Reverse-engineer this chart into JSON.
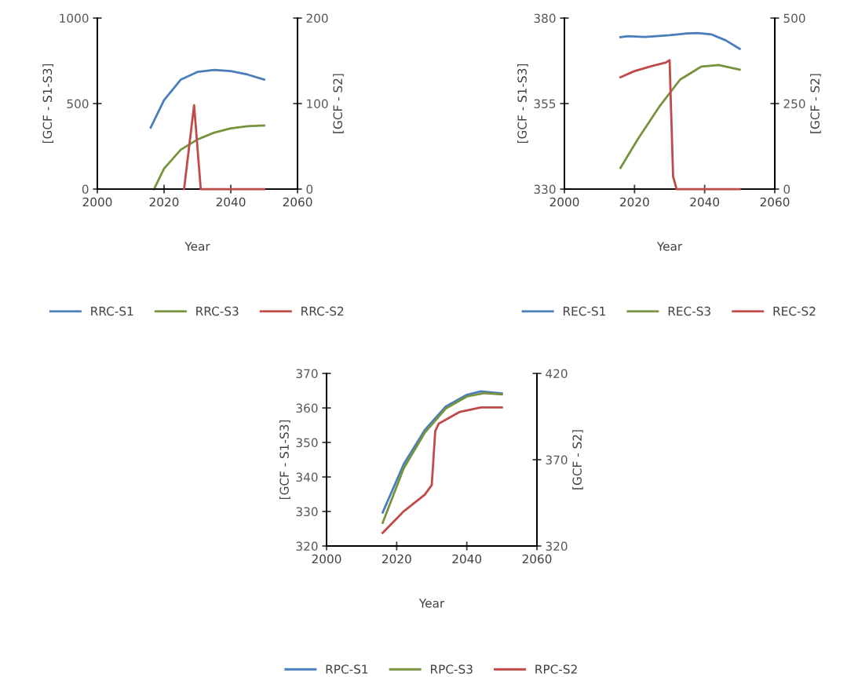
{
  "chart_data": [
    {
      "type": "line",
      "xlabel": "Year",
      "ylabel": "[GCF - S1-S3]",
      "y2label": "[GCF - S2]",
      "xlim": [
        2000,
        2060
      ],
      "xticks": [
        2000,
        2020,
        2040,
        2060
      ],
      "ylim": [
        0,
        1000
      ],
      "yticks": [
        0,
        500,
        1000
      ],
      "y2lim": [
        0,
        200
      ],
      "y2ticks": [
        0,
        100,
        200
      ],
      "legend": "bottom",
      "grid": false,
      "series": [
        {
          "name": "RRC-S1",
          "color": "#4a7ebb",
          "x": [
            2016,
            2020,
            2025,
            2030,
            2035,
            2040,
            2045,
            2050
          ],
          "values": [
            360,
            520,
            640,
            685,
            697,
            690,
            670,
            640
          ]
        },
        {
          "name": "RRC-S3",
          "color": "#77933c",
          "x": [
            2017,
            2020,
            2025,
            2030,
            2035,
            2040,
            2045,
            2050
          ],
          "values": [
            0,
            120,
            230,
            290,
            330,
            355,
            368,
            372
          ]
        },
        {
          "name": "RRC-S2",
          "color": "#be4b48",
          "axis": "y2",
          "x": [
            2026,
            2029,
            2031,
            2050
          ],
          "values": [
            0,
            98,
            0,
            0
          ]
        }
      ]
    },
    {
      "type": "line",
      "xlabel": "Year",
      "ylabel": "[GCF - S1-S3]",
      "y2label": "[GCF - S2]",
      "xlim": [
        2000,
        2060
      ],
      "xticks": [
        2000,
        2020,
        2040,
        2060
      ],
      "ylim": [
        330,
        380
      ],
      "yticks": [
        330,
        355,
        380
      ],
      "y2lim": [
        0,
        500
      ],
      "y2ticks": [
        0,
        250,
        500
      ],
      "legend": "bottom",
      "grid": false,
      "series": [
        {
          "name": "REC-S1",
          "color": "#4a7ebb",
          "x": [
            2016,
            2018,
            2023,
            2030,
            2035,
            2038,
            2042,
            2046,
            2050
          ],
          "values": [
            374.4,
            374.7,
            374.5,
            375.0,
            375.5,
            375.6,
            375.2,
            373.5,
            371.0
          ]
        },
        {
          "name": "REC-S3",
          "color": "#77933c",
          "x": [
            2016,
            2021,
            2027,
            2033,
            2039,
            2044,
            2050
          ],
          "values": [
            336.2,
            344.7,
            354.0,
            362.0,
            365.8,
            366.3,
            364.9
          ]
        },
        {
          "name": "REC-S2",
          "color": "#be4b48",
          "axis": "y2",
          "x": [
            2016,
            2020,
            2025,
            2029,
            2030,
            2031,
            2032,
            2050
          ],
          "values": [
            327,
            345,
            360,
            370,
            377,
            37,
            0,
            0
          ]
        }
      ]
    },
    {
      "type": "line",
      "xlabel": "Year",
      "ylabel": "[GCF - S1-S3]",
      "y2label": "[GCF - S2]",
      "xlim": [
        2000,
        2060
      ],
      "xticks": [
        2000,
        2020,
        2040,
        2060
      ],
      "ylim": [
        320,
        370
      ],
      "yticks": [
        320,
        330,
        340,
        350,
        360,
        370
      ],
      "y2lim": [
        320,
        420
      ],
      "y2ticks": [
        320,
        370,
        420
      ],
      "legend": "bottom",
      "grid": false,
      "series": [
        {
          "name": "RPC-S1",
          "color": "#4a7ebb",
          "x": [
            2016,
            2022,
            2028,
            2034,
            2040,
            2044,
            2050
          ],
          "values": [
            329.7,
            343.7,
            353.6,
            360.4,
            363.8,
            364.8,
            364.2
          ]
        },
        {
          "name": "RPC-S3",
          "color": "#77933c",
          "x": [
            2016,
            2022,
            2028,
            2034,
            2040,
            2045,
            2050
          ],
          "values": [
            326.7,
            342.5,
            352.8,
            359.8,
            363.3,
            364.3,
            363.9
          ]
        },
        {
          "name": "RPC-S2",
          "color": "#be4b48",
          "axis": "y2",
          "x": [
            2016,
            2022,
            2028,
            2030,
            2031,
            2032,
            2038,
            2044,
            2050
          ],
          "values": [
            327.6,
            340.1,
            349.7,
            355.3,
            386.7,
            390.9,
            397.7,
            400.3,
            400.3
          ]
        }
      ]
    }
  ]
}
